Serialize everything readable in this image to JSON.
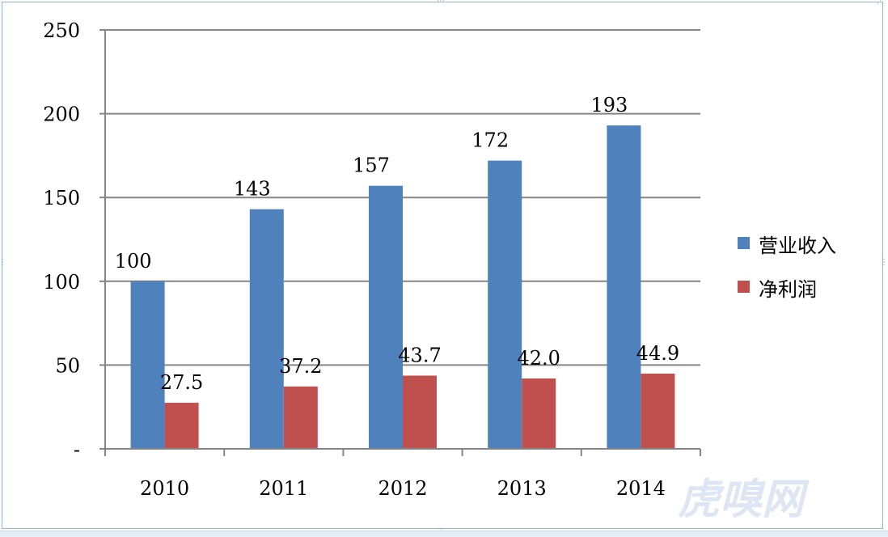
{
  "chart_data": {
    "type": "bar",
    "categories": [
      "2010",
      "2011",
      "2012",
      "2013",
      "2014"
    ],
    "series": [
      {
        "name": "营业收入",
        "values": [
          100,
          143,
          157,
          172,
          193
        ],
        "labels": [
          "100",
          "143",
          "157",
          "172",
          "193"
        ],
        "color": "#4f81bd"
      },
      {
        "name": "净利润",
        "values": [
          27.5,
          37.2,
          43.7,
          42.0,
          44.9
        ],
        "labels": [
          "27.5",
          "37.2",
          "43.7",
          "42.0",
          "44.9"
        ],
        "color": "#c0504d"
      }
    ],
    "ylim": [
      0,
      250
    ],
    "yticks": [
      0,
      50,
      100,
      150,
      200,
      250
    ],
    "ytick_labels": [
      "-",
      "50",
      "100",
      "150",
      "200",
      "250"
    ],
    "grid": true,
    "legend_position": "right",
    "gridline_color": "#868686"
  },
  "watermark": "虎嗅网"
}
